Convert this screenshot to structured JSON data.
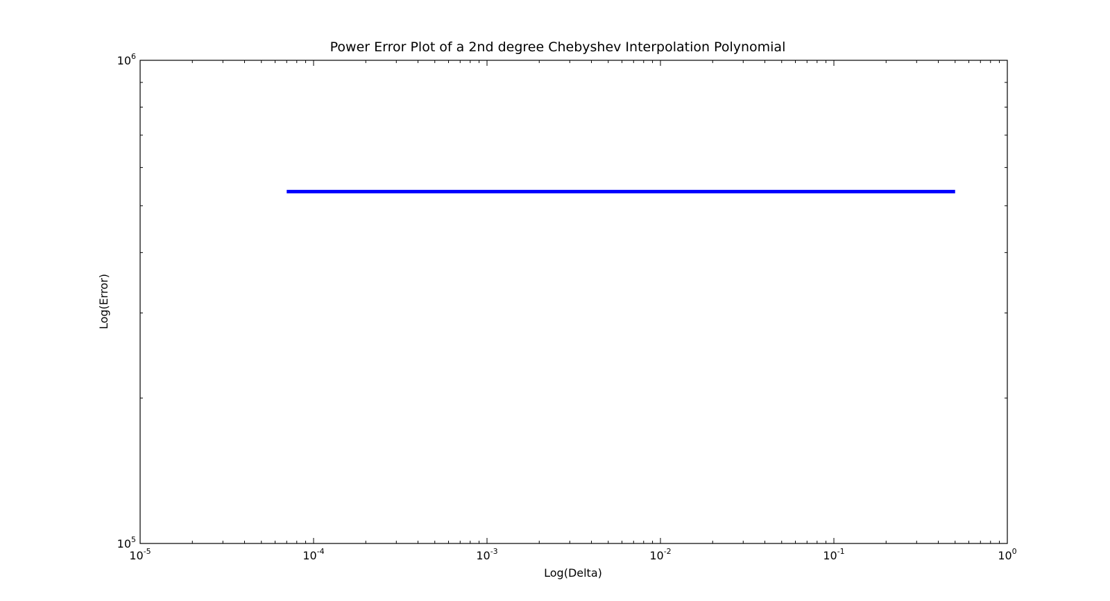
{
  "chart_data": {
    "type": "line",
    "title": "Power Error Plot of a 2nd degree Chebyshev Interpolation Polynomial",
    "xlabel": "Log(Delta)",
    "ylabel": "Log(Error)",
    "xscale": "log",
    "yscale": "log",
    "xlim": [
      1e-05,
      1
    ],
    "ylim": [
      100000,
      1000000
    ],
    "grid": false,
    "legend": "none",
    "x_ticks": [
      {
        "base": "10",
        "exp": "-5"
      },
      {
        "base": "10",
        "exp": "-4"
      },
      {
        "base": "10",
        "exp": "-3"
      },
      {
        "base": "10",
        "exp": "-2"
      },
      {
        "base": "10",
        "exp": "-1"
      },
      {
        "base": "10",
        "exp": "0"
      }
    ],
    "y_ticks": [
      {
        "base": "10",
        "exp": "5"
      },
      {
        "base": "10",
        "exp": "6"
      }
    ],
    "series": [
      {
        "color": "#0000ff",
        "x": [
          7e-05,
          0.5
        ],
        "y": [
          535000,
          535000
        ]
      }
    ]
  }
}
